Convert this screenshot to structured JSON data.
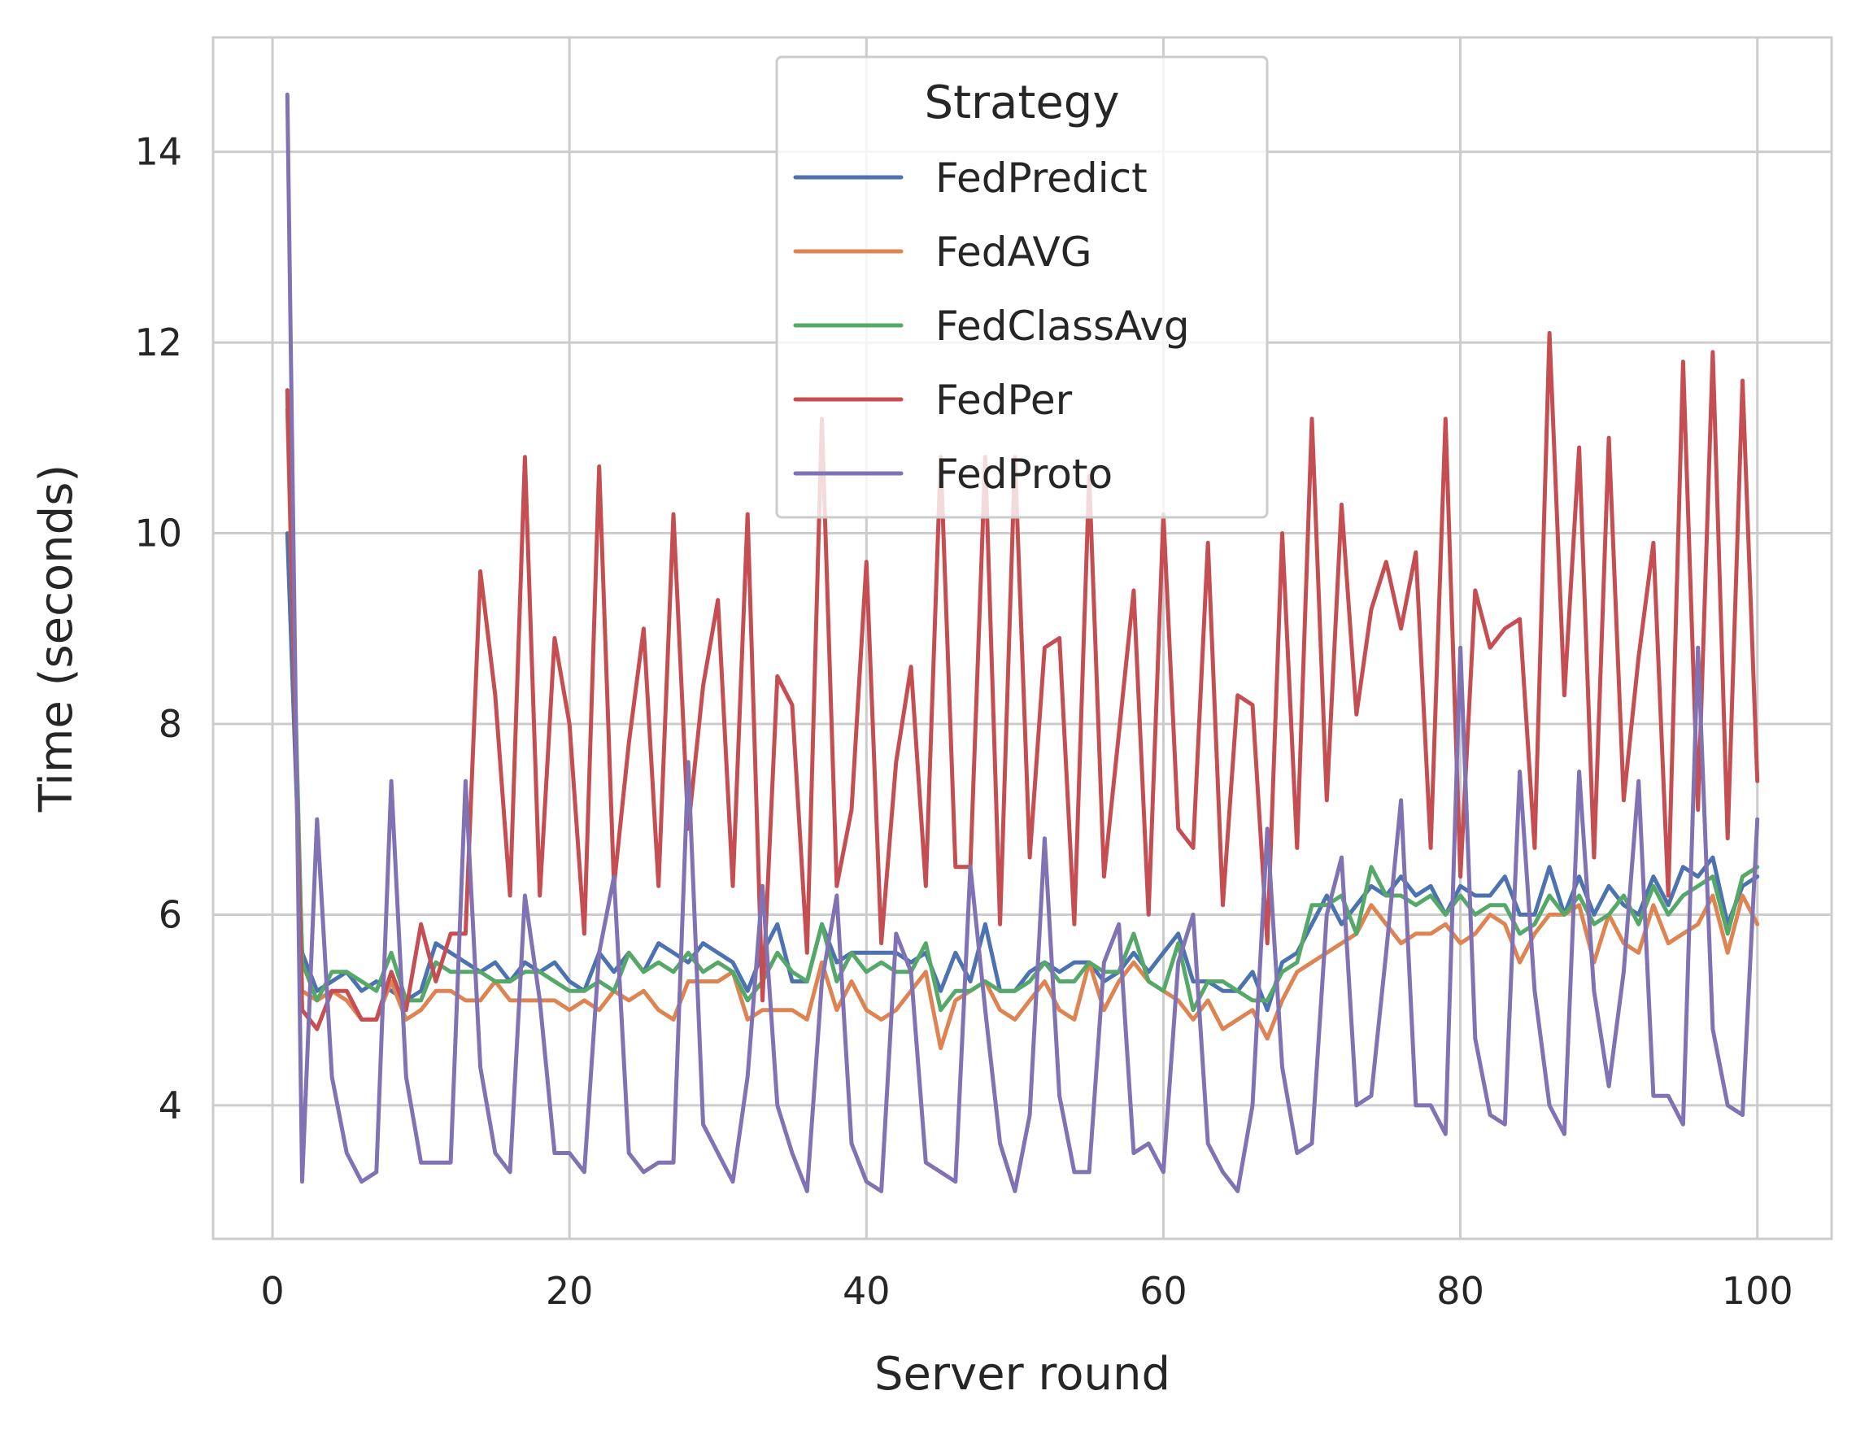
{
  "chart_data": {
    "type": "line",
    "title": "",
    "xlabel": "Server round",
    "ylabel": "Time (seconds)",
    "xlim": [
      -4,
      105
    ],
    "ylim": [
      2.6,
      15.2
    ],
    "xticks": [
      0,
      20,
      40,
      60,
      80,
      100
    ],
    "yticks": [
      4,
      6,
      8,
      10,
      12,
      14
    ],
    "xtick_labels": [
      "0",
      "20",
      "40",
      "60",
      "80",
      "100"
    ],
    "ytick_labels": [
      "4",
      "6",
      "8",
      "10",
      "12",
      "14"
    ],
    "grid": true,
    "legend": {
      "title": "Strategy",
      "placement": "upper-center"
    },
    "x": [
      1,
      2,
      3,
      4,
      5,
      6,
      7,
      8,
      9,
      10,
      11,
      12,
      13,
      14,
      15,
      16,
      17,
      18,
      19,
      20,
      21,
      22,
      23,
      24,
      25,
      26,
      27,
      28,
      29,
      30,
      31,
      32,
      33,
      34,
      35,
      36,
      37,
      38,
      39,
      40,
      41,
      42,
      43,
      44,
      45,
      46,
      47,
      48,
      49,
      50,
      51,
      52,
      53,
      54,
      55,
      56,
      57,
      58,
      59,
      60,
      61,
      62,
      63,
      64,
      65,
      66,
      67,
      68,
      69,
      70,
      71,
      72,
      73,
      74,
      75,
      76,
      77,
      78,
      79,
      80,
      81,
      82,
      83,
      84,
      85,
      86,
      87,
      88,
      89,
      90,
      91,
      92,
      93,
      94,
      95,
      96,
      97,
      98,
      99,
      100
    ],
    "series": [
      {
        "name": "FedPredict",
        "color": "#4c72b0",
        "values": [
          10.0,
          5.6,
          5.2,
          5.3,
          5.4,
          5.2,
          5.3,
          5.2,
          5.1,
          5.2,
          5.7,
          5.6,
          5.5,
          5.4,
          5.5,
          5.3,
          5.5,
          5.4,
          5.5,
          5.3,
          5.2,
          5.6,
          5.4,
          5.6,
          5.4,
          5.7,
          5.6,
          5.5,
          5.7,
          5.6,
          5.5,
          5.2,
          5.6,
          5.9,
          5.3,
          5.3,
          5.9,
          5.5,
          5.6,
          5.6,
          5.6,
          5.6,
          5.5,
          5.6,
          5.2,
          5.6,
          5.3,
          5.9,
          5.2,
          5.2,
          5.4,
          5.5,
          5.4,
          5.5,
          5.5,
          5.3,
          5.4,
          5.6,
          5.4,
          5.6,
          5.8,
          5.3,
          5.3,
          5.2,
          5.2,
          5.4,
          5.0,
          5.5,
          5.6,
          5.9,
          6.2,
          5.9,
          6.1,
          6.3,
          6.2,
          6.4,
          6.2,
          6.3,
          6.0,
          6.3,
          6.2,
          6.2,
          6.4,
          6.0,
          6.0,
          6.5,
          6.0,
          6.4,
          6.0,
          6.3,
          6.1,
          6.0,
          6.4,
          6.1,
          6.5,
          6.4,
          6.6,
          5.9,
          6.3,
          6.4
        ]
      },
      {
        "name": "FedAVG",
        "color": "#dd8452",
        "values": [
          11.3,
          5.2,
          5.1,
          5.2,
          5.1,
          4.9,
          4.9,
          5.3,
          4.9,
          5.0,
          5.2,
          5.2,
          5.1,
          5.1,
          5.3,
          5.1,
          5.1,
          5.1,
          5.1,
          5.0,
          5.1,
          5.0,
          5.2,
          5.1,
          5.2,
          5.0,
          4.9,
          5.3,
          5.3,
          5.3,
          5.4,
          4.9,
          5.0,
          5.0,
          5.0,
          4.9,
          5.5,
          5.0,
          5.3,
          5.0,
          4.9,
          5.0,
          5.2,
          5.4,
          4.6,
          5.1,
          5.2,
          5.3,
          5.0,
          4.9,
          5.1,
          5.3,
          5.0,
          4.9,
          5.5,
          5.0,
          5.3,
          5.5,
          5.3,
          5.2,
          5.1,
          4.9,
          5.1,
          4.8,
          4.9,
          5.0,
          4.7,
          5.1,
          5.4,
          5.5,
          5.6,
          5.7,
          5.8,
          6.1,
          5.9,
          5.7,
          5.8,
          5.8,
          5.9,
          5.7,
          5.8,
          6.0,
          5.9,
          5.5,
          5.8,
          6.0,
          6.0,
          6.1,
          5.5,
          6.0,
          5.7,
          5.6,
          6.1,
          5.7,
          5.8,
          5.9,
          6.2,
          5.6,
          6.2,
          5.9
        ]
      },
      {
        "name": "FedClassAvg",
        "color": "#55a868",
        "values": [
          11.5,
          5.5,
          5.1,
          5.4,
          5.4,
          5.3,
          5.2,
          5.6,
          5.1,
          5.1,
          5.5,
          5.4,
          5.4,
          5.4,
          5.3,
          5.3,
          5.4,
          5.4,
          5.3,
          5.2,
          5.2,
          5.3,
          5.2,
          5.6,
          5.4,
          5.5,
          5.4,
          5.6,
          5.4,
          5.5,
          5.4,
          5.1,
          5.3,
          5.6,
          5.4,
          5.3,
          5.9,
          5.3,
          5.6,
          5.4,
          5.5,
          5.4,
          5.4,
          5.7,
          5.0,
          5.2,
          5.2,
          5.3,
          5.2,
          5.2,
          5.3,
          5.5,
          5.3,
          5.3,
          5.5,
          5.4,
          5.4,
          5.8,
          5.3,
          5.2,
          5.7,
          5.0,
          5.3,
          5.3,
          5.2,
          5.1,
          5.1,
          5.4,
          5.5,
          6.1,
          6.1,
          6.2,
          5.8,
          6.5,
          6.2,
          6.2,
          6.1,
          6.2,
          6.0,
          6.2,
          6.0,
          6.1,
          6.1,
          5.8,
          5.9,
          6.2,
          6.0,
          6.2,
          5.9,
          6.0,
          6.2,
          5.9,
          6.3,
          6.0,
          6.2,
          6.3,
          6.4,
          5.8,
          6.4,
          6.5
        ]
      },
      {
        "name": "FedPer",
        "color": "#c44e52",
        "values": [
          11.5,
          5.0,
          4.8,
          5.2,
          5.2,
          4.9,
          4.9,
          5.4,
          5.0,
          5.9,
          5.3,
          5.8,
          5.8,
          9.6,
          8.3,
          6.2,
          10.8,
          6.2,
          8.9,
          8.0,
          5.8,
          10.7,
          6.3,
          7.8,
          9.0,
          6.3,
          10.2,
          6.9,
          8.4,
          9.3,
          6.3,
          10.2,
          5.1,
          8.5,
          8.2,
          5.6,
          11.2,
          6.3,
          7.1,
          9.7,
          5.7,
          7.6,
          8.6,
          6.3,
          10.8,
          6.5,
          6.5,
          10.8,
          5.9,
          10.8,
          6.6,
          8.8,
          8.9,
          5.9,
          10.6,
          6.4,
          7.9,
          9.4,
          6.0,
          10.2,
          6.9,
          6.7,
          9.9,
          6.1,
          8.3,
          8.2,
          5.7,
          10.0,
          6.7,
          11.2,
          7.2,
          10.3,
          8.1,
          9.2,
          9.7,
          9.0,
          9.8,
          6.7,
          11.2,
          6.4,
          9.4,
          8.8,
          9.0,
          9.1,
          6.7,
          12.1,
          8.3,
          10.9,
          6.6,
          11.0,
          7.2,
          8.7,
          9.9,
          6.2,
          11.8,
          7.1,
          11.9,
          6.8,
          11.6,
          7.4
        ]
      },
      {
        "name": "FedProto",
        "color": "#8172b3",
        "values": [
          14.6,
          3.2,
          7.0,
          4.3,
          3.5,
          3.2,
          3.3,
          7.4,
          4.3,
          3.4,
          3.4,
          3.4,
          7.4,
          4.4,
          3.5,
          3.3,
          6.2,
          5.1,
          3.5,
          3.5,
          3.3,
          5.6,
          6.4,
          3.5,
          3.3,
          3.4,
          3.4,
          7.6,
          3.8,
          3.5,
          3.2,
          4.3,
          6.3,
          4.0,
          3.5,
          3.1,
          5.3,
          6.2,
          3.6,
          3.2,
          3.1,
          5.8,
          5.4,
          3.4,
          3.3,
          3.2,
          6.5,
          5.0,
          3.6,
          3.1,
          3.9,
          6.8,
          4.1,
          3.3,
          3.3,
          5.5,
          5.9,
          3.5,
          3.6,
          3.3,
          5.5,
          6.0,
          3.6,
          3.3,
          3.1,
          4.0,
          6.9,
          4.4,
          3.5,
          3.6,
          6.0,
          6.6,
          4.0,
          4.1,
          5.6,
          7.2,
          4.0,
          4.0,
          3.7,
          8.8,
          4.7,
          3.9,
          3.8,
          7.5,
          5.2,
          4.0,
          3.7,
          7.5,
          5.2,
          4.2,
          5.4,
          7.4,
          4.1,
          4.1,
          3.8,
          8.8,
          4.8,
          4.0,
          3.9,
          7.0
        ]
      }
    ]
  }
}
